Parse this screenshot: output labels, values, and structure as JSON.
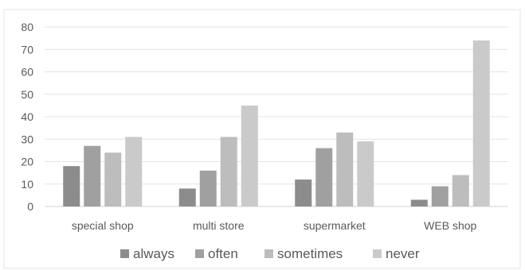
{
  "chart_data": {
    "type": "bar",
    "categories": [
      "special shop",
      "multi store",
      "supermarket",
      "WEB shop"
    ],
    "series": [
      {
        "name": "always",
        "values": [
          18,
          8,
          12,
          3
        ],
        "color": "#8c8c8c"
      },
      {
        "name": "often",
        "values": [
          27,
          16,
          26,
          9
        ],
        "color": "#a0a0a0"
      },
      {
        "name": "sometimes",
        "values": [
          24,
          31,
          33,
          14
        ],
        "color": "#bdbdbd"
      },
      {
        "name": "never",
        "values": [
          31,
          45,
          29,
          74
        ],
        "color": "#cacaca"
      }
    ],
    "ylim": [
      0,
      80
    ],
    "yticks": [
      0,
      10,
      20,
      30,
      40,
      50,
      60,
      70,
      80
    ],
    "grid": true,
    "legend_position": "bottom"
  }
}
